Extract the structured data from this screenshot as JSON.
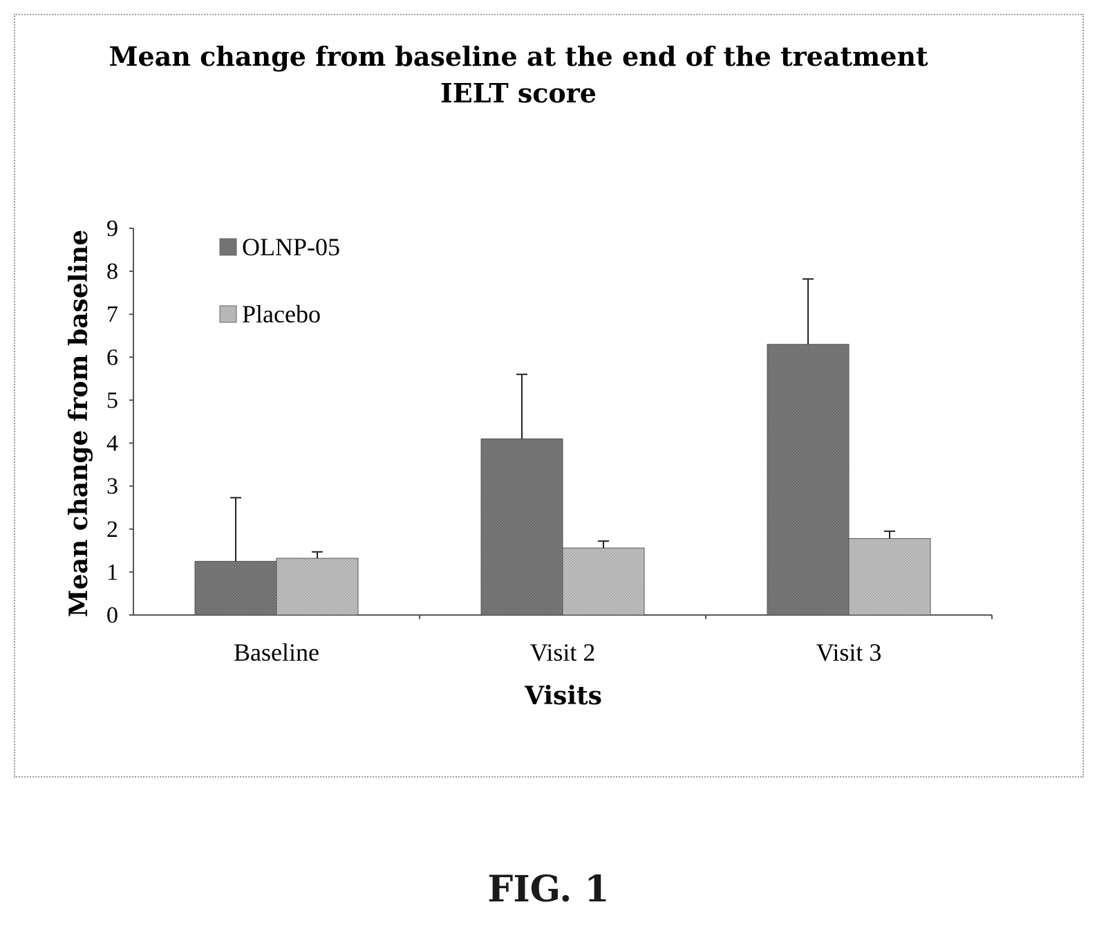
{
  "figure_caption": "FIG. 1",
  "chart_data": {
    "type": "bar",
    "title_lines": [
      "Mean change from baseline at the end of the treatment",
      "IELT score"
    ],
    "xlabel": "Visits",
    "ylabel": "Mean change from baseline",
    "categories": [
      "Baseline",
      "Visit 2",
      "Visit 3"
    ],
    "ylim": [
      0,
      9
    ],
    "yticks": [
      0,
      1,
      2,
      3,
      4,
      5,
      6,
      7,
      8,
      9
    ],
    "grid": false,
    "legend_position": "top-left",
    "series": [
      {
        "name": "OLNP-05",
        "values": [
          1.25,
          4.1,
          6.3
        ],
        "error": [
          1.48,
          1.5,
          1.52
        ],
        "color": "#7a7a7a"
      },
      {
        "name": "Placebo",
        "values": [
          1.32,
          1.56,
          1.78
        ],
        "error": [
          0.15,
          0.16,
          0.17
        ],
        "color": "#c2c2c2"
      }
    ]
  }
}
